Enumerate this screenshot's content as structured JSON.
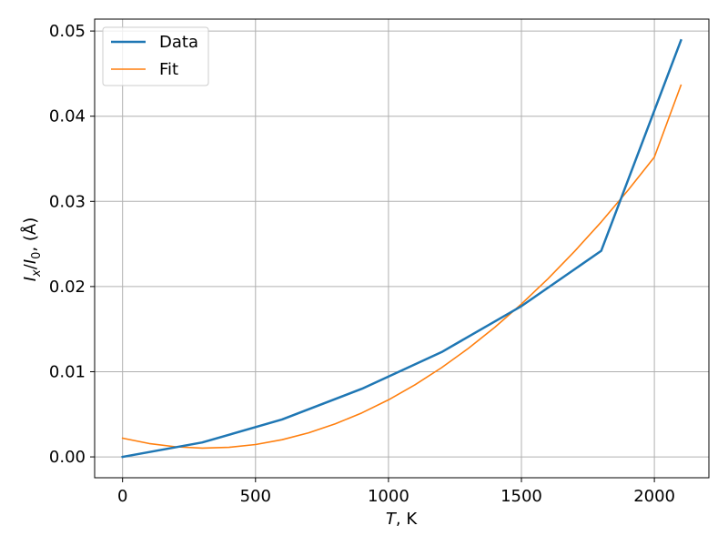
{
  "chart_data": {
    "type": "line",
    "title": "",
    "xlabel": {
      "symbol": "T",
      "unit": ", K"
    },
    "ylabel": {
      "numerator": "I",
      "numerator_sub": "x",
      "separator": "/",
      "denominator": "I",
      "denominator_sub": "0",
      "unit": ", (Å)"
    },
    "xlim": [
      -105,
      2205
    ],
    "ylim": [
      -0.00245,
      0.0514
    ],
    "xticks": [
      0,
      500,
      1000,
      1500,
      2000
    ],
    "xtick_labels": [
      "0",
      "500",
      "1000",
      "1500",
      "2000"
    ],
    "yticks": [
      0.0,
      0.01,
      0.02,
      0.03,
      0.04,
      0.05
    ],
    "ytick_labels": [
      "0.00",
      "0.01",
      "0.02",
      "0.03",
      "0.04",
      "0.05"
    ],
    "grid": true,
    "legend_position": "upper-left",
    "series": [
      {
        "name": "Data",
        "color": "#1f77b4",
        "line_width": "thick",
        "x": [
          0,
          300,
          600,
          900,
          1200,
          1500,
          1800,
          2100
        ],
        "y": [
          0.0,
          0.0017,
          0.0044,
          0.008,
          0.0123,
          0.0177,
          0.0242,
          0.0489
        ]
      },
      {
        "name": "Fit",
        "color": "#ff7f0e",
        "line_width": "normal",
        "x": [
          0,
          100,
          200,
          300,
          400,
          500,
          600,
          700,
          800,
          900,
          1000,
          1100,
          1200,
          1300,
          1400,
          1500,
          1600,
          1700,
          1800,
          1900,
          2000,
          2100
        ],
        "y": [
          0.0022,
          0.00157,
          0.00118,
          0.00103,
          0.00112,
          0.00145,
          0.00202,
          0.00283,
          0.00388,
          0.00517,
          0.0067,
          0.00847,
          0.01048,
          0.01273,
          0.01522,
          0.01795,
          0.02092,
          0.02413,
          0.02758,
          0.03127,
          0.0352,
          0.04364
        ]
      }
    ]
  }
}
